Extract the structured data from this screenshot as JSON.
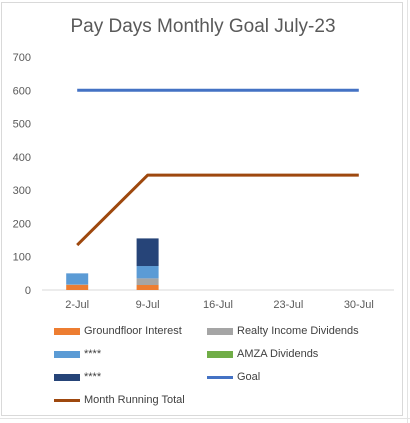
{
  "chart_data": {
    "type": "bar",
    "title": "Pay Days Monthly Goal July-23",
    "categories": [
      "2-Jul",
      "9-Jul",
      "16-Jul",
      "23-Jul",
      "30-Jul"
    ],
    "ylim": [
      0,
      700
    ],
    "yticks": [
      "0",
      "100",
      "200",
      "300",
      "400",
      "500",
      "600",
      "700"
    ],
    "ytick_values": [
      0,
      100,
      200,
      300,
      400,
      500,
      600,
      700
    ],
    "stacked": true,
    "series": [
      {
        "name": "Groundfloor Interest",
        "kind": "bar",
        "color": "#ed7d31",
        "values": [
          15,
          15,
          0,
          0,
          0
        ]
      },
      {
        "name": "Realty Income Dividends",
        "kind": "bar",
        "color": "#a5a5a5",
        "values": [
          2,
          20,
          0,
          0,
          0
        ]
      },
      {
        "name": "****",
        "kind": "bar",
        "color": "#5b9bd5",
        "values": [
          33,
          37,
          0,
          0,
          0
        ]
      },
      {
        "name": "AMZA Dividends",
        "kind": "bar",
        "color": "#70ad47",
        "values": [
          0,
          0,
          0,
          0,
          0
        ]
      },
      {
        "name": "****",
        "kind": "bar",
        "color": "#264478",
        "values": [
          0,
          83,
          0,
          0,
          0
        ]
      },
      {
        "name": "Goal",
        "kind": "line",
        "color": "#4472c4",
        "values": [
          600,
          600,
          600,
          600,
          600
        ]
      },
      {
        "name": "Month Running Total",
        "kind": "line",
        "color": "#9e480e",
        "values": [
          135,
          345,
          345,
          345,
          345
        ]
      }
    ],
    "legend_position": "bottom",
    "grid": false
  }
}
